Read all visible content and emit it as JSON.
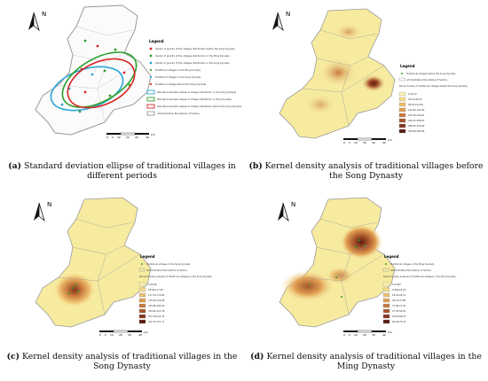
{
  "panels": [
    {
      "id": "a",
      "caption_letter": "(a)",
      "caption_text": "Standard deviation ellipse of traditional villages in different periods",
      "north_label": "N",
      "legend_title": "Legend",
      "legend_items": [
        "Center of gravity of the villages distribution before the Song Dynasty",
        "Center of gravity of the villages distribution in the Ming Dynasty",
        "Center of gravity of the villages distribution in the Song Dynasty",
        "Traditional villages in the Ming Dynasty",
        "Traditional villages in the Song Dynasty",
        "Traditional villages before the Song Dynasty",
        "Standard deviation ellipse of village distribution in the Song Dynasty",
        "Standard deviation ellipse of village distribution in Ming Dynasty",
        "Standard deviation ellipse of village distribution before the Song Dynasty",
        "Administrative Boundaries of Suzhou"
      ],
      "scale_labels": [
        "0",
        "5",
        "10",
        "20",
        "30",
        "40"
      ],
      "scale_unit": "km",
      "colors": {
        "ellipse_song": "#2aa7d6",
        "ellipse_ming": "#2ca02c",
        "ellipse_before": "#d62728"
      }
    },
    {
      "id": "b",
      "caption_letter": "(b)",
      "caption_text": "Kernel density analysis of traditional villages before the Song Dynasty",
      "north_label": "N",
      "legend_title": "Legend",
      "legend_items": [
        "Traditional villages before the Song Dynasty",
        "Administrative Boundaries of Suzhou",
        "Kernel density of traditional villages before the Song Dynasty"
      ],
      "density_classes": [
        "0-36.14",
        "36.14-96.54",
        "96.54-144.56",
        "144.56-192.59",
        "192.59-240.61",
        "240.61-288.63",
        "288.63-336.66",
        "336.66-384.68"
      ],
      "scale_labels": [
        "0",
        "5",
        "10",
        "20",
        "30",
        "40"
      ],
      "scale_unit": "km"
    },
    {
      "id": "c",
      "caption_letter": "(c)",
      "caption_text": "Kernel density analysis of traditional villages in the Song Dynasty",
      "north_label": "N",
      "legend_title": "Legend",
      "legend_items": [
        "Traditional villages in the Song Dynasty",
        "Administrative Boundaries of Suzhou",
        "Kernel density analysis of traditional villages in the Song Dynasty"
      ],
      "density_classes": [
        "0-58.96",
        "58.96-117.93",
        "117.93-176.89",
        "176.89-235.86",
        "235.86-294.82",
        "294.82-353.78",
        "353.78-412.75",
        "412.75-471.71"
      ],
      "scale_labels": [
        "0",
        "5",
        "10",
        "20",
        "30",
        "40"
      ],
      "scale_unit": "km"
    },
    {
      "id": "d",
      "caption_letter": "(d)",
      "caption_text": "Kernel density analysis of traditional villages in the Ming Dynasty",
      "north_label": "N",
      "legend_title": "Legend",
      "legend_items": [
        "Traditional villages in the Ming Dynasty",
        "Administrative Boundaries of Suzhou",
        "Kernel density analysis of traditional villages in the Ming Dynasty"
      ],
      "density_classes": [
        "0-9.469",
        "9.469-18.94",
        "18.94-28.41",
        "28.41-37.88",
        "37.88-47.35",
        "47.35-56.82",
        "56.82-66.29",
        "66.29-75.76"
      ],
      "scale_labels": [
        "0",
        "5",
        "10",
        "20",
        "30",
        "40"
      ],
      "scale_unit": "km"
    }
  ],
  "colors": {
    "map_fill": "#f7eba0",
    "boundary": "#9a9a9a",
    "ramp": [
      "#fbf2b4",
      "#f5dc8e",
      "#eebf6e",
      "#e09e52",
      "#c8793c",
      "#a8552c",
      "#84351d",
      "#5c1b10"
    ]
  }
}
